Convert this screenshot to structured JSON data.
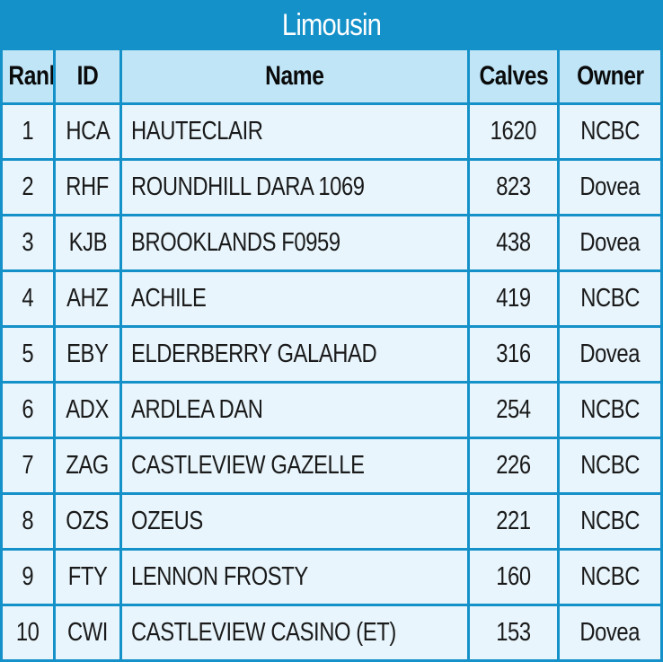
{
  "title": "Limousin",
  "columns": {
    "rank": "Rank",
    "id": "ID",
    "name": "Name",
    "calves": "Calves",
    "owner": "Owner"
  },
  "rows": [
    {
      "rank": "1",
      "id": "HCA",
      "name": "HAUTECLAIR",
      "calves": "1620",
      "owner": "NCBC"
    },
    {
      "rank": "2",
      "id": "RHF",
      "name": "ROUNDHILL DARA 1069",
      "calves": "823",
      "owner": "Dovea"
    },
    {
      "rank": "3",
      "id": "KJB",
      "name": "BROOKLANDS F0959",
      "calves": "438",
      "owner": "Dovea"
    },
    {
      "rank": "4",
      "id": "AHZ",
      "name": "ACHILE",
      "calves": "419",
      "owner": "NCBC"
    },
    {
      "rank": "5",
      "id": "EBY",
      "name": "ELDERBERRY GALAHAD",
      "calves": "316",
      "owner": "Dovea"
    },
    {
      "rank": "6",
      "id": "ADX",
      "name": "ARDLEA DAN",
      "calves": "254",
      "owner": "NCBC"
    },
    {
      "rank": "7",
      "id": "ZAG",
      "name": "CASTLEVIEW GAZELLE",
      "calves": "226",
      "owner": "NCBC"
    },
    {
      "rank": "8",
      "id": "OZS",
      "name": "OZEUS",
      "calves": "221",
      "owner": "NCBC"
    },
    {
      "rank": "9",
      "id": "FTY",
      "name": "LENNON FROSTY",
      "calves": "160",
      "owner": "NCBC"
    },
    {
      "rank": "10",
      "id": "CWI",
      "name": "CASTLEVIEW CASINO (ET)",
      "calves": "153",
      "owner": "Dovea"
    }
  ],
  "colors": {
    "frame": "#1591c9",
    "header_bg": "#bfe5f7",
    "cell_bg": "#e8f5fc"
  }
}
